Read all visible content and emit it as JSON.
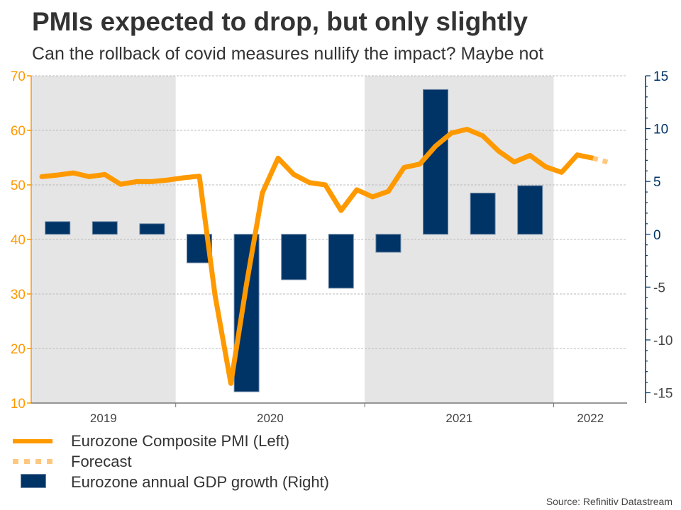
{
  "chart_data": {
    "type": "bar+line",
    "title": "PMIs expected to drop, but only slightly",
    "subtitle": "Can the rollback of covid measures nullify the impact? Maybe not",
    "source": "Source: Refinitiv Datastream",
    "x_period_labels": [
      "2019",
      "2020",
      "2021",
      "2022"
    ],
    "shaded_years": [
      "2019",
      "2021"
    ],
    "left_axis": {
      "label": "Eurozone Composite PMI (Left)",
      "range": [
        10,
        70
      ],
      "ticks": [
        "10",
        "20",
        "30",
        "40",
        "50",
        "60",
        "70"
      ],
      "color": "#ff9900"
    },
    "right_axis": {
      "label": "Eurozone annual GDP growth (Right)",
      "range": [
        -15,
        15
      ],
      "ticks": [
        "-15",
        "-10",
        "-5",
        "0",
        "5",
        "10",
        "15"
      ],
      "color": "#003366"
    },
    "grid": true,
    "legend_position": "bottom-left",
    "series": [
      {
        "name": "Eurozone Composite PMI (Left)",
        "type": "line",
        "axis": "left",
        "color": "#ff9900",
        "x": [
          "Apr 2019",
          "May 2019",
          "Jun 2019",
          "Jul 2019",
          "Aug 2019",
          "Sep 2019",
          "Oct 2019",
          "Nov 2019",
          "Dec 2019",
          "Jan 2020",
          "Feb 2020",
          "Mar 2020",
          "Apr 2020",
          "May 2020",
          "Jun 2020",
          "Jul 2020",
          "Aug 2020",
          "Sep 2020",
          "Oct 2020",
          "Nov 2020",
          "Dec 2020",
          "Jan 2021",
          "Feb 2021",
          "Mar 2021",
          "Apr 2021",
          "May 2021",
          "Jun 2021",
          "Jul 2021",
          "Aug 2021",
          "Sep 2021",
          "Oct 2021",
          "Nov 2021",
          "Dec 2021",
          "Jan 2022",
          "Feb 2022",
          "Mar 2022"
        ],
        "values": [
          51.5,
          51.8,
          52.2,
          51.5,
          51.9,
          50.1,
          50.6,
          50.6,
          50.9,
          51.3,
          51.6,
          29.7,
          13.6,
          31.9,
          48.5,
          54.9,
          51.9,
          50.4,
          50.0,
          45.3,
          49.1,
          47.8,
          48.8,
          53.2,
          53.8,
          57.1,
          59.5,
          60.2,
          59.0,
          56.2,
          54.2,
          55.4,
          53.3,
          52.3,
          55.5,
          54.9
        ]
      },
      {
        "name": "Forecast",
        "type": "line-dashed",
        "axis": "left",
        "color": "#ffc880",
        "x": [
          "Mar 2022",
          "Apr 2022"
        ],
        "values": [
          54.9,
          54.1
        ]
      },
      {
        "name": "Eurozone annual GDP growth (Right)",
        "type": "bar",
        "axis": "right",
        "color": "#003366",
        "x": [
          "Q2 2019",
          "Q3 2019",
          "Q4 2019",
          "Q1 2020",
          "Q2 2020",
          "Q3 2020",
          "Q4 2020",
          "Q1 2021",
          "Q2 2021",
          "Q3 2021",
          "Q4 2021"
        ],
        "values": [
          1.2,
          1.2,
          1.0,
          -2.7,
          -14.9,
          -4.3,
          -5.1,
          -1.7,
          13.7,
          3.9,
          4.6
        ]
      }
    ]
  },
  "legend": [
    {
      "label": "Eurozone Composite PMI (Left)"
    },
    {
      "label": "Forecast"
    },
    {
      "label": "Eurozone annual GDP growth (Right)"
    }
  ]
}
